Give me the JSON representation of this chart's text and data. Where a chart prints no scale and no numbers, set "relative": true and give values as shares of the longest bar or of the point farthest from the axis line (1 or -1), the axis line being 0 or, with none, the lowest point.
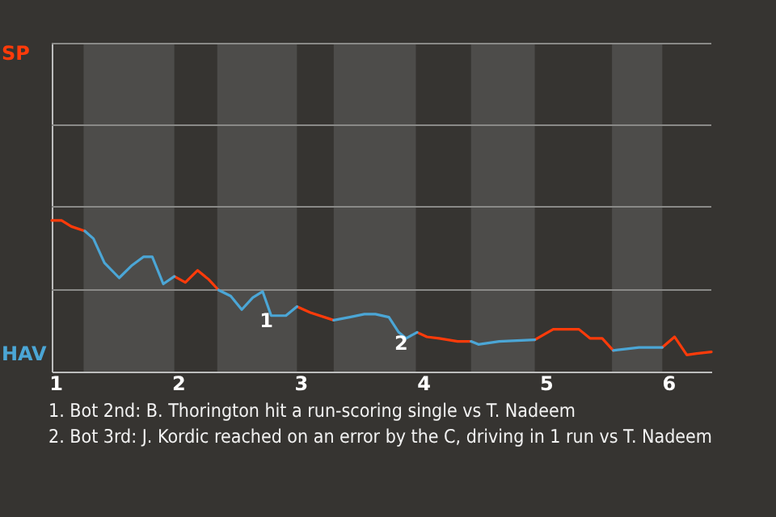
{
  "chart_data": {
    "type": "line",
    "relative": true,
    "xlim": [
      0.97,
      6.35
    ],
    "xticks": [
      1,
      2,
      3,
      4,
      5,
      6
    ],
    "ref_lines": [
      {
        "axis": "y",
        "value": 0.54,
        "color": "#8a8a88"
      },
      {
        "axis": "y",
        "value": 1.09,
        "color": "#8a8a88"
      },
      {
        "axis": "y",
        "value": 1.63,
        "color": "#8a8a88"
      },
      {
        "axis": "y",
        "value": 2.17,
        "color": "#8a8a88"
      }
    ],
    "line_style": "solid",
    "marker": "none",
    "x": [
      0.97,
      1.05,
      1.13,
      1.24,
      1.31,
      1.4,
      1.52,
      1.62,
      1.72,
      1.79,
      1.88,
      1.97,
      2.06,
      2.16,
      2.25,
      2.33,
      2.43,
      2.52,
      2.61,
      2.69,
      2.76,
      2.88,
      2.97,
      3.08,
      3.27,
      3.4,
      3.52,
      3.61,
      3.72,
      3.8,
      3.86,
      3.95,
      4.03,
      4.13,
      4.28,
      4.39,
      4.45,
      4.62,
      4.91,
      5.06,
      5.27,
      5.36,
      5.46,
      5.55,
      5.66,
      5.76,
      5.95,
      6.05,
      6.15,
      6.23,
      6.35
    ],
    "series": [
      {
        "color": "#ff3b0a",
        "values": [
          1,
          1,
          0.96,
          0.93,
          null,
          null,
          null,
          null,
          null,
          null,
          null,
          0.63,
          0.59,
          0.67,
          0.61,
          0.54,
          null,
          null,
          null,
          null,
          null,
          null,
          0.43,
          0.39,
          0.34,
          null,
          null,
          null,
          null,
          null,
          null,
          0.26,
          0.23,
          0.22,
          0.2,
          0.2,
          null,
          null,
          0.21,
          0.28,
          0.28,
          0.22,
          0.22,
          0.14,
          null,
          null,
          0.16,
          0.23,
          0.11,
          0.12,
          0.13
        ]
      },
      {
        "color": "#4ba6d6",
        "values": [
          null,
          null,
          null,
          0.93,
          0.88,
          0.72,
          0.62,
          0.7,
          0.76,
          0.76,
          0.58,
          0.63,
          null,
          null,
          null,
          0.54,
          0.5,
          0.41,
          0.49,
          0.53,
          0.37,
          0.37,
          0.43,
          null,
          0.34,
          0.36,
          0.38,
          0.38,
          0.36,
          0.26,
          0.22,
          0.26,
          null,
          null,
          null,
          0.2,
          0.18,
          0.2,
          0.21,
          null,
          null,
          null,
          null,
          0.14,
          0.15,
          0.16,
          0.16,
          null,
          null,
          null,
          null
        ]
      }
    ],
    "bands": [
      {
        "axis": "x",
        "from": 1.23,
        "to": 1.97,
        "color": "#4d4c4a"
      },
      {
        "axis": "x",
        "from": 2.32,
        "to": 2.97,
        "color": "#4d4c4a"
      },
      {
        "axis": "x",
        "from": 3.27,
        "to": 3.94,
        "color": "#4d4c4a"
      },
      {
        "axis": "x",
        "from": 4.39,
        "to": 4.91,
        "color": "#4d4c4a"
      },
      {
        "axis": "x",
        "from": 5.54,
        "to": 5.95,
        "color": "#4d4c4a"
      }
    ],
    "annotations": [
      "SP",
      "HAV",
      {
        "text": "1",
        "x": 2.76,
        "y": 0.37
      },
      {
        "text": "2",
        "x": 3.86,
        "y": 0.22
      },
      "1. Bot 2nd: B. Thorington hit a run-scoring single vs T. Nadeem",
      "2. Bot 3rd: J. Kordic reached on an error by the C, driving in 1 run vs T. Nadeem"
    ]
  }
}
